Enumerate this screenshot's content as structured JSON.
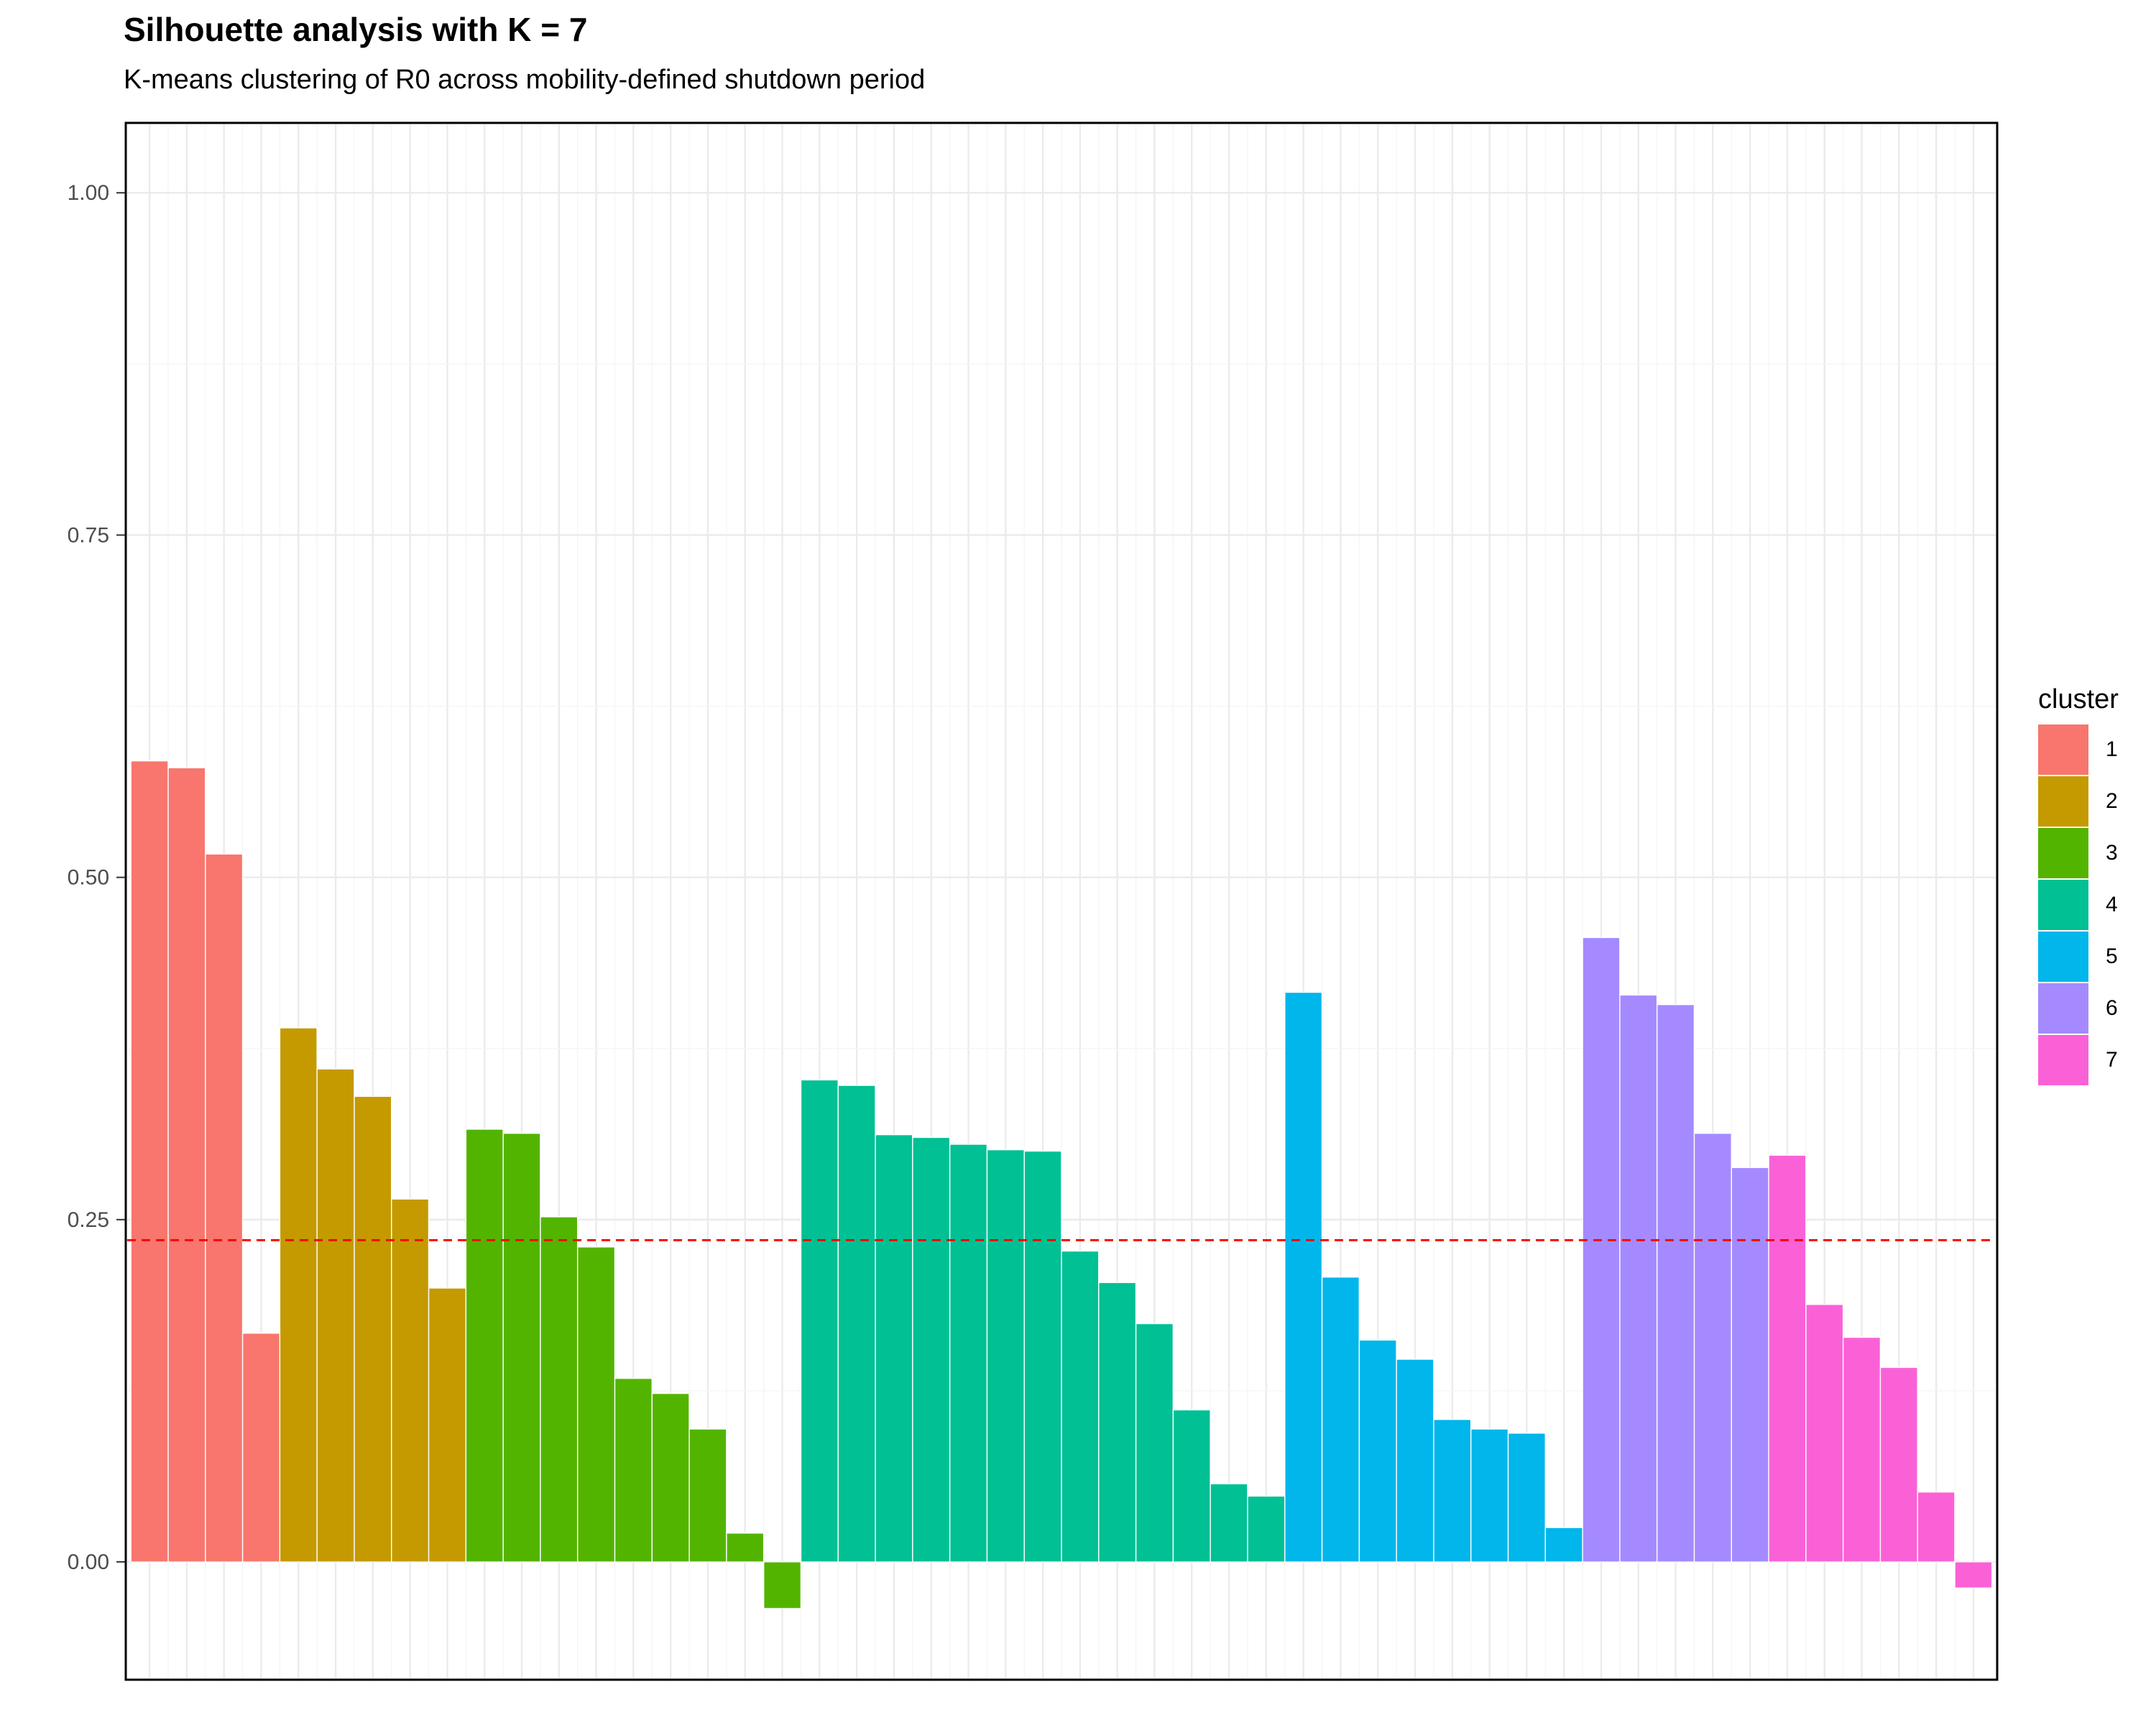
{
  "title": "Silhouette analysis with K = 7",
  "subtitle": "K-means clustering of R0 across mobility-defined shutdown period",
  "chart_data": {
    "type": "bar",
    "y_ticks": [
      "0.00",
      "0.25",
      "0.50",
      "0.75",
      "1.00"
    ],
    "ylim": [
      -0.085,
      1.05
    ],
    "grid": true,
    "x_tick_labels_shown": false,
    "reference_line": {
      "y": 0.235,
      "color": "#FF0000",
      "style": "dashed"
    },
    "legend": {
      "title": "cluster",
      "position": "right",
      "entries": [
        {
          "label": "1",
          "color": "#F8766D"
        },
        {
          "label": "2",
          "color": "#C49A00"
        },
        {
          "label": "3",
          "color": "#53B400"
        },
        {
          "label": "4",
          "color": "#00C094"
        },
        {
          "label": "5",
          "color": "#00B6EB"
        },
        {
          "label": "6",
          "color": "#A58AFF"
        },
        {
          "label": "7",
          "color": "#FB61D7"
        }
      ]
    },
    "series": [
      {
        "name": "1",
        "values": [
          0.585,
          0.58,
          0.517,
          0.167
        ]
      },
      {
        "name": "2",
        "values": [
          0.39,
          0.36,
          0.34,
          0.265,
          0.2
        ]
      },
      {
        "name": "3",
        "values": [
          0.316,
          0.313,
          0.252,
          0.23,
          0.134,
          0.123,
          0.097,
          0.021,
          -0.034
        ]
      },
      {
        "name": "4",
        "values": [
          0.352,
          0.348,
          0.312,
          0.31,
          0.305,
          0.301,
          0.3,
          0.227,
          0.204,
          0.174,
          0.111,
          0.057,
          0.048
        ]
      },
      {
        "name": "5",
        "values": [
          0.416,
          0.208,
          0.162,
          0.148,
          0.104,
          0.097,
          0.094,
          0.025
        ]
      },
      {
        "name": "6",
        "values": [
          0.456,
          0.414,
          0.407,
          0.313,
          0.288
        ]
      },
      {
        "name": "7",
        "values": [
          0.297,
          0.188,
          0.164,
          0.142,
          0.051,
          -0.019
        ]
      }
    ]
  }
}
